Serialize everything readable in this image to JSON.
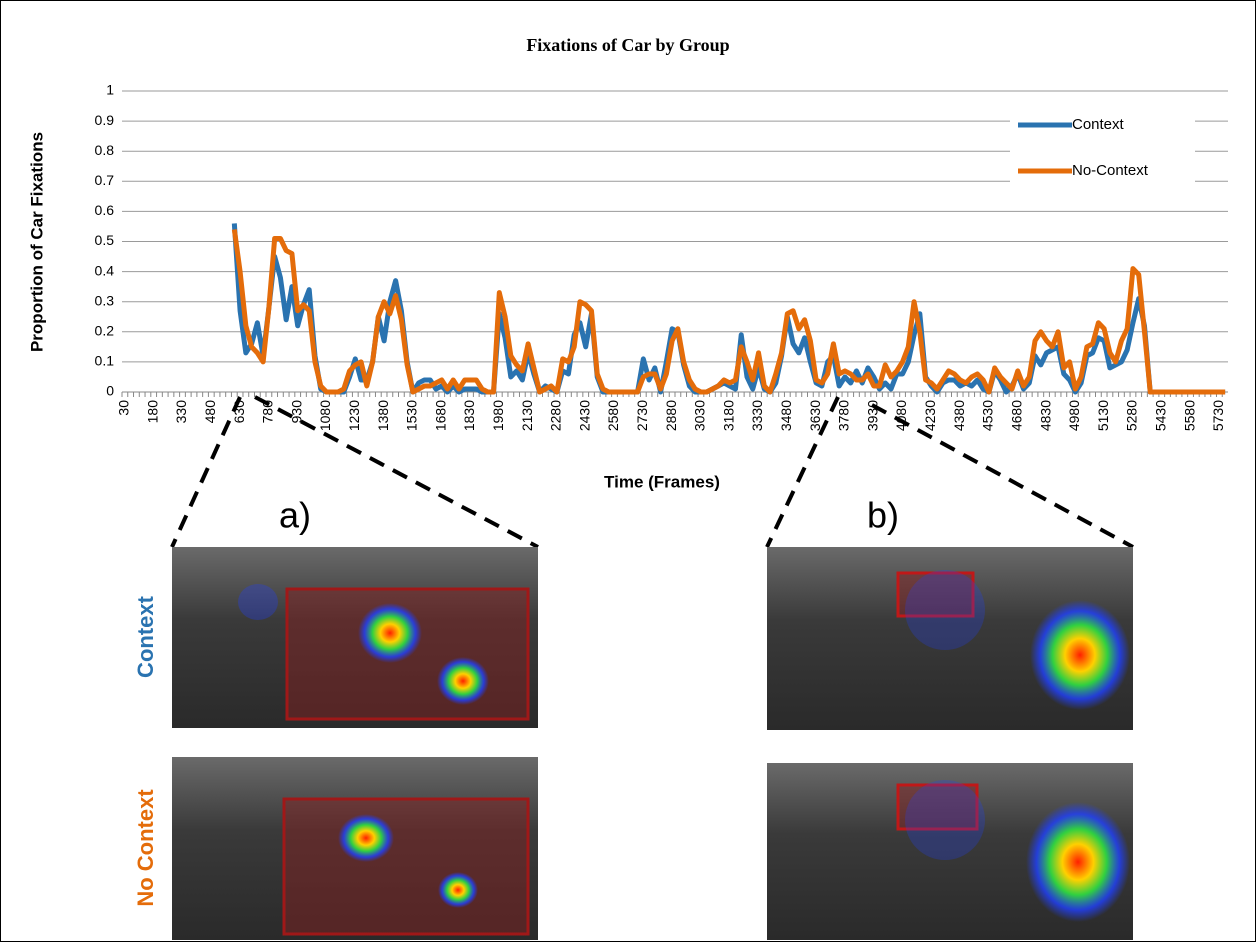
{
  "chart_data": {
    "type": "line",
    "title": "Fixations of Car by Group",
    "x_label": "Time (Frames)",
    "y_label": "Proportion of Car Fixations",
    "x": [
      30,
      60,
      90,
      120,
      150,
      180,
      210,
      240,
      270,
      300,
      330,
      360,
      390,
      420,
      450,
      480,
      510,
      540,
      570,
      600,
      630,
      660,
      690,
      720,
      750,
      780,
      810,
      840,
      870,
      900,
      930,
      960,
      990,
      1020,
      1050,
      1080,
      1110,
      1140,
      1170,
      1200,
      1230,
      1260,
      1290,
      1320,
      1350,
      1380,
      1410,
      1440,
      1470,
      1500,
      1530,
      1560,
      1590,
      1620,
      1650,
      1680,
      1710,
      1740,
      1770,
      1800,
      1830,
      1860,
      1890,
      1920,
      1950,
      1980,
      2010,
      2040,
      2070,
      2100,
      2130,
      2160,
      2190,
      2220,
      2250,
      2280,
      2310,
      2340,
      2370,
      2400,
      2430,
      2460,
      2490,
      2520,
      2550,
      2580,
      2610,
      2640,
      2670,
      2700,
      2730,
      2760,
      2790,
      2820,
      2850,
      2880,
      2910,
      2940,
      2970,
      3000,
      3030,
      3060,
      3090,
      3120,
      3150,
      3180,
      3210,
      3240,
      3270,
      3300,
      3330,
      3360,
      3390,
      3420,
      3450,
      3480,
      3510,
      3540,
      3570,
      3600,
      3630,
      3660,
      3690,
      3720,
      3750,
      3780,
      3810,
      3840,
      3870,
      3900,
      3930,
      3960,
      3990,
      4020,
      4050,
      4080,
      4110,
      4140,
      4170,
      4200,
      4230,
      4260,
      4290,
      4320,
      4350,
      4380,
      4410,
      4440,
      4470,
      4500,
      4530,
      4560,
      4590,
      4620,
      4650,
      4680,
      4710,
      4740,
      4770,
      4800,
      4830,
      4860,
      4890,
      4920,
      4950,
      4980,
      5010,
      5040,
      5070,
      5100,
      5130,
      5160,
      5190,
      5220,
      5250,
      5280,
      5310,
      5340,
      5370,
      5400,
      5430,
      5460,
      5490,
      5520,
      5550,
      5580,
      5610,
      5640,
      5670,
      5700,
      5730,
      5760
    ],
    "series": [
      {
        "name": "Context",
        "color": "#2a73b0",
        "values": [
          null,
          null,
          null,
          null,
          null,
          null,
          null,
          null,
          null,
          null,
          null,
          null,
          null,
          null,
          null,
          null,
          null,
          null,
          null,
          0.56,
          0.27,
          0.13,
          0.16,
          0.23,
          0.12,
          0.28,
          0.45,
          0.38,
          0.24,
          0.35,
          0.22,
          0.29,
          0.34,
          0.12,
          0.01,
          0,
          0,
          0,
          0,
          0.05,
          0.11,
          0.04,
          0.04,
          0.1,
          0.25,
          0.17,
          0.3,
          0.37,
          0.27,
          0.1,
          0,
          0.03,
          0.04,
          0.04,
          0.01,
          0.02,
          0,
          0.02,
          0,
          0.01,
          0.01,
          0.01,
          0,
          0,
          0,
          0.26,
          0.18,
          0.05,
          0.07,
          0.04,
          0.13,
          0.06,
          0,
          0.02,
          0.01,
          0,
          0.07,
          0.06,
          0.19,
          0.23,
          0.15,
          0.26,
          0.05,
          0,
          0,
          0,
          0,
          0,
          0,
          0,
          0.11,
          0.04,
          0.08,
          0,
          0.1,
          0.21,
          0.2,
          0.09,
          0.02,
          0,
          0,
          0,
          0.01,
          0.02,
          0.03,
          0.02,
          0.01,
          0.19,
          0.05,
          0.01,
          0.08,
          0.01,
          0,
          0.03,
          0.12,
          0.25,
          0.16,
          0.13,
          0.18,
          0.1,
          0.03,
          0.02,
          0.1,
          0.12,
          0.02,
          0.05,
          0.03,
          0.07,
          0.03,
          0.08,
          0.05,
          0.01,
          0.03,
          0.01,
          0.06,
          0.06,
          0.1,
          0.19,
          0.26,
          0.05,
          0.02,
          0,
          0.03,
          0.04,
          0.04,
          0.02,
          0.03,
          0.02,
          0.04,
          0.01,
          0,
          0.07,
          0.04,
          0,
          0.02,
          0.06,
          0.01,
          0.03,
          0.12,
          0.09,
          0.13,
          0.14,
          0.15,
          0.06,
          0.04,
          0,
          0.03,
          0.12,
          0.13,
          0.18,
          0.17,
          0.08,
          0.09,
          0.1,
          0.14,
          0.23,
          0.31,
          0.22,
          0,
          0,
          0,
          0,
          0,
          0,
          0,
          0,
          0,
          0,
          0,
          0,
          0,
          0
        ]
      },
      {
        "name": "No-Context",
        "color": "#e46c0a",
        "values": [
          null,
          null,
          null,
          null,
          null,
          null,
          null,
          null,
          null,
          null,
          null,
          null,
          null,
          null,
          null,
          null,
          null,
          null,
          null,
          0.54,
          0.4,
          0.22,
          0.15,
          0.13,
          0.1,
          0.28,
          0.51,
          0.51,
          0.47,
          0.46,
          0.27,
          0.29,
          0.27,
          0.1,
          0.02,
          0,
          0,
          0,
          0.01,
          0.07,
          0.09,
          0.1,
          0.02,
          0.1,
          0.25,
          0.3,
          0.26,
          0.32,
          0.24,
          0.09,
          0,
          0.01,
          0.02,
          0.02,
          0.03,
          0.04,
          0.01,
          0.04,
          0.01,
          0.04,
          0.04,
          0.04,
          0.01,
          0,
          0,
          0.33,
          0.25,
          0.12,
          0.09,
          0.07,
          0.16,
          0.08,
          0,
          0.01,
          0.02,
          0,
          0.11,
          0.1,
          0.15,
          0.3,
          0.29,
          0.27,
          0.06,
          0.01,
          0,
          0,
          0,
          0,
          0,
          0,
          0.05,
          0.06,
          0.06,
          0.01,
          0.06,
          0.17,
          0.21,
          0.1,
          0.04,
          0.01,
          0,
          0,
          0.01,
          0.02,
          0.04,
          0.03,
          0.04,
          0.15,
          0.1,
          0.04,
          0.13,
          0.02,
          0,
          0.06,
          0.13,
          0.26,
          0.27,
          0.21,
          0.24,
          0.17,
          0.04,
          0.03,
          0.06,
          0.16,
          0.06,
          0.07,
          0.06,
          0.04,
          0.04,
          0.06,
          0.02,
          0.02,
          0.09,
          0.05,
          0.07,
          0.1,
          0.15,
          0.3,
          0.2,
          0.04,
          0.03,
          0.01,
          0.04,
          0.07,
          0.06,
          0.04,
          0.03,
          0.05,
          0.06,
          0.04,
          0,
          0.08,
          0.05,
          0.03,
          0.01,
          0.07,
          0.02,
          0.05,
          0.17,
          0.2,
          0.17,
          0.15,
          0.2,
          0.08,
          0.1,
          0.01,
          0.05,
          0.15,
          0.16,
          0.23,
          0.21,
          0.13,
          0.1,
          0.17,
          0.21,
          0.41,
          0.39,
          0.2,
          0,
          0,
          0,
          0,
          0,
          0,
          0,
          0,
          0,
          0,
          0,
          0,
          0,
          0
        ]
      }
    ],
    "xlim": [
      15,
      5775
    ],
    "xticks": [
      30,
      180,
      330,
      480,
      630,
      780,
      930,
      1080,
      1230,
      1380,
      1530,
      1680,
      1830,
      1980,
      2130,
      2280,
      2430,
      2580,
      2730,
      2880,
      3030,
      3180,
      3330,
      3480,
      3630,
      3780,
      3930,
      4080,
      4230,
      4380,
      4530,
      4680,
      4830,
      4980,
      5130,
      5280,
      5430,
      5580,
      5730
    ],
    "ylim": [
      0,
      1
    ],
    "yticks": [
      0,
      0.1,
      0.2,
      0.3,
      0.4,
      0.5,
      0.6,
      0.7,
      0.8,
      0.9,
      1
    ],
    "grid": true,
    "legend": "top-right"
  },
  "panels": [
    {
      "label": "a)"
    },
    {
      "label": "b)"
    }
  ],
  "rows": [
    "Context",
    "No Context"
  ]
}
